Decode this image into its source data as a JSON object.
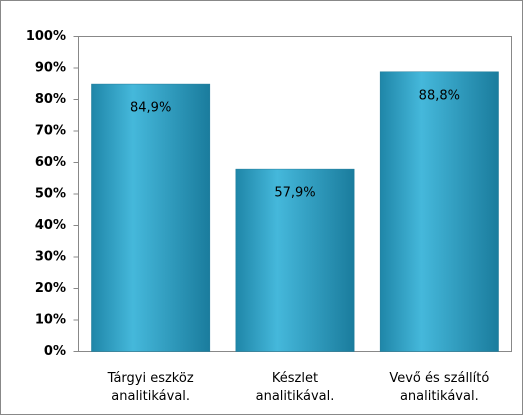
{
  "chart_data": {
    "type": "bar",
    "categories": [
      "Tárgyi eszköz\nanalitikával.",
      "Készlet\nanalitikával.",
      "Vevő és szállító\nanalitikával."
    ],
    "values": [
      84.9,
      57.9,
      88.8
    ],
    "value_labels": [
      "84,9%",
      "57,9%",
      "88,8%"
    ],
    "color": "#2a9cc2",
    "ylim": [
      0,
      100
    ],
    "yticks": [
      {
        "value": 0,
        "label": "0%"
      },
      {
        "value": 10,
        "label": "10%"
      },
      {
        "value": 20,
        "label": "20%"
      },
      {
        "value": 30,
        "label": "30%"
      },
      {
        "value": 40,
        "label": "40%"
      },
      {
        "value": 50,
        "label": "50%"
      },
      {
        "value": 60,
        "label": "60%"
      },
      {
        "value": 70,
        "label": "70%"
      },
      {
        "value": 80,
        "label": "80%"
      },
      {
        "value": 90,
        "label": "90%"
      },
      {
        "value": 100,
        "label": "100%"
      }
    ],
    "grid": false
  }
}
